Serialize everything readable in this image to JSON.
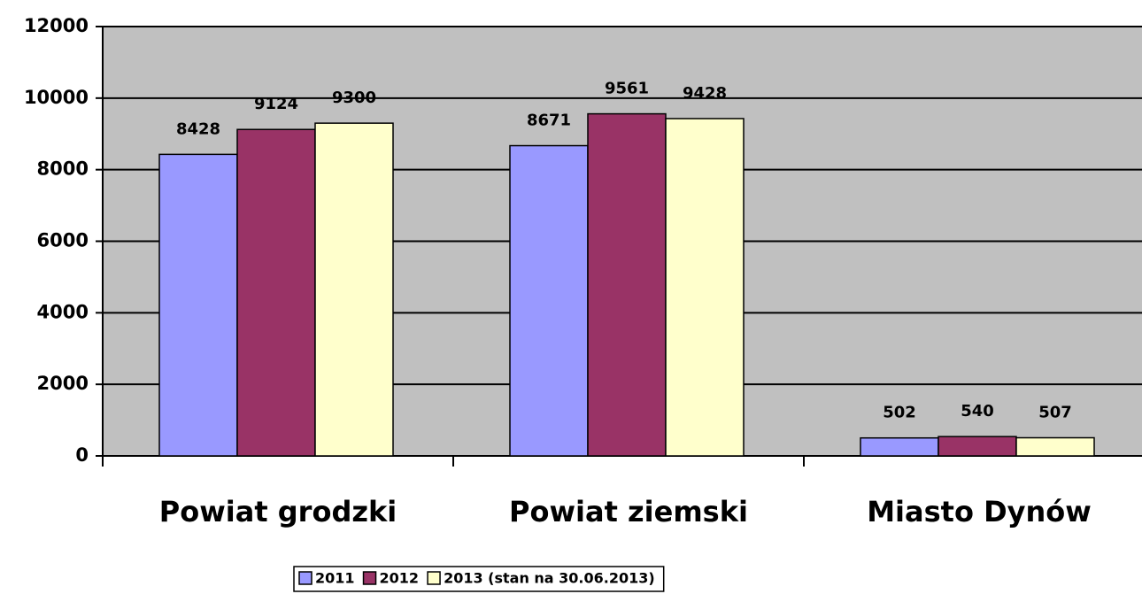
{
  "chart_data": {
    "type": "bar",
    "categories": [
      "Powiat grodzki",
      "Powiat ziemski",
      "Miasto Dynów"
    ],
    "series": [
      {
        "name": "2011",
        "color": "#9999ff",
        "values": [
          8428,
          8671,
          502
        ]
      },
      {
        "name": "2012",
        "color": "#993366",
        "values": [
          9124,
          9561,
          540
        ]
      },
      {
        "name": "2013 (stan na 30.06.2013)",
        "color": "#ffffcc",
        "values": [
          9300,
          9428,
          507
        ]
      }
    ],
    "ylim": [
      0,
      12000
    ],
    "yticks": [
      0,
      2000,
      4000,
      6000,
      8000,
      10000,
      12000
    ],
    "grid": true,
    "legend": "bottom"
  }
}
